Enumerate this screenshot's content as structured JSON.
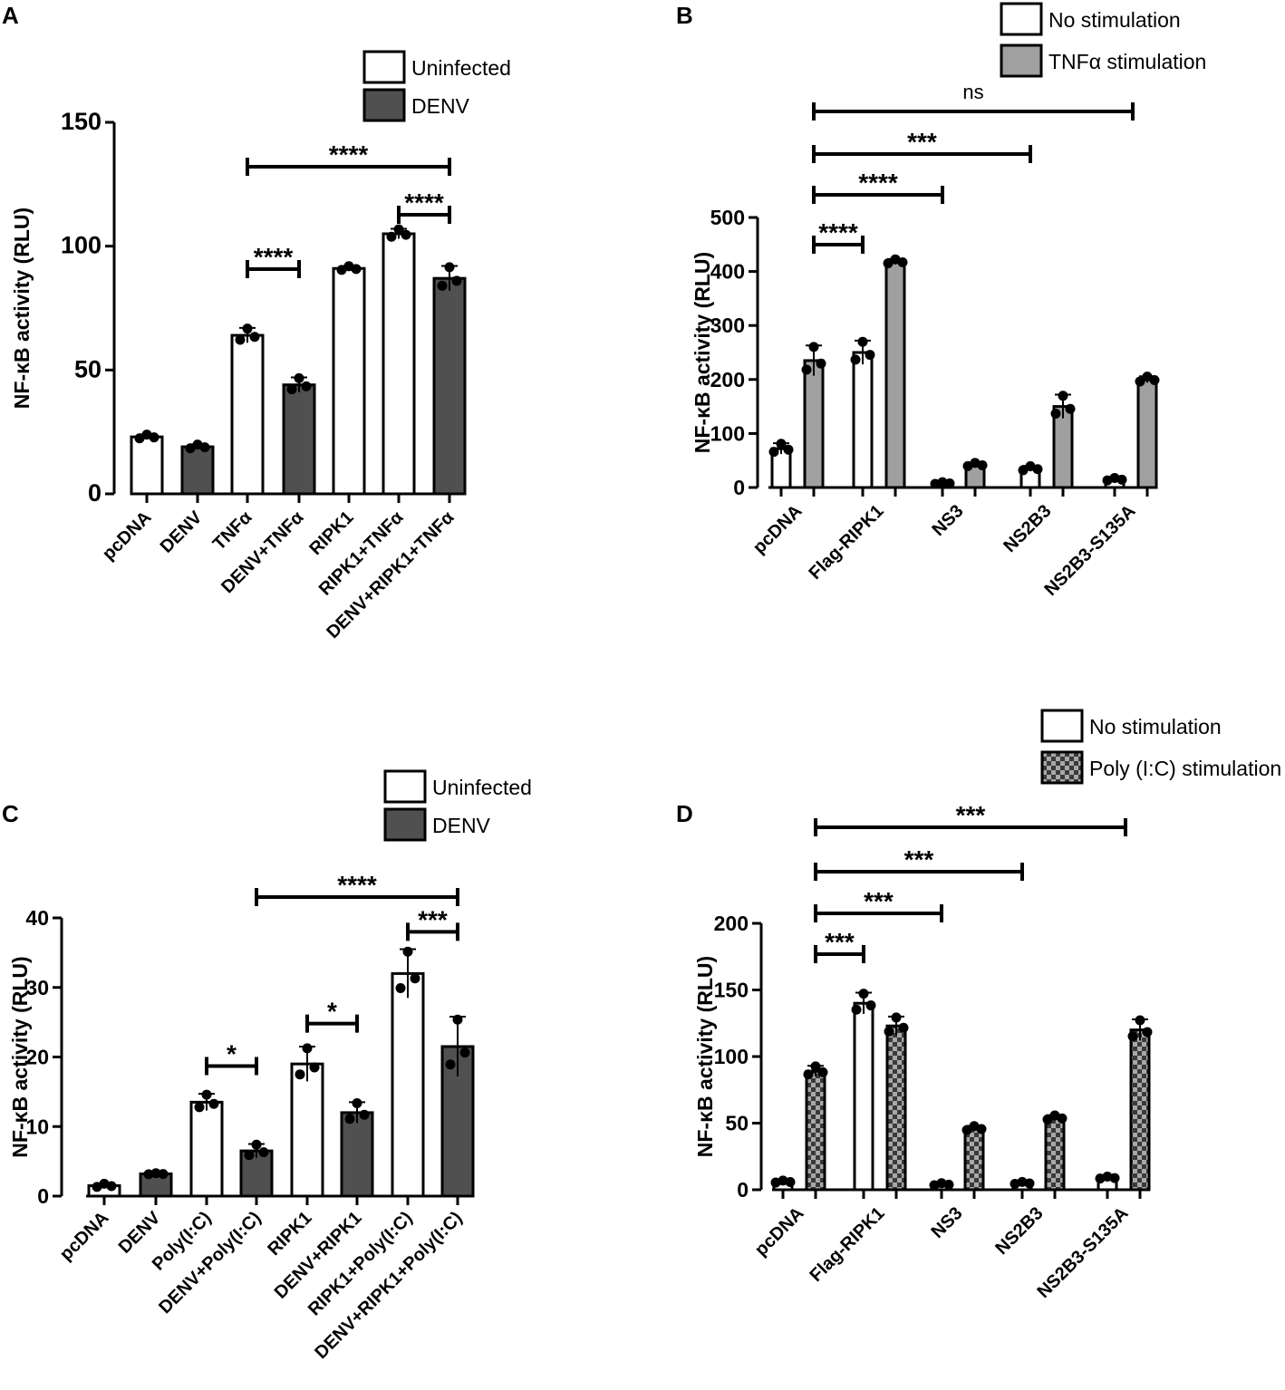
{
  "colors": {
    "dark_bar": "#505050",
    "light_bar": "#a0a0a0",
    "open_bar": "#ffffff",
    "axis": "#000000"
  },
  "chart_data": [
    {
      "panel": "A",
      "type": "bar",
      "ylabel": "NF-κB activity (RLU)",
      "ylim": [
        0,
        150
      ],
      "yticks": [
        0,
        50,
        100,
        150
      ],
      "legend": [
        {
          "label": "Uninfected",
          "style": "open"
        },
        {
          "label": "DENV",
          "style": "dark"
        }
      ],
      "categories": [
        "pcDNA",
        "DENV",
        "TNFα",
        "DENV+TNFα",
        "RIPK1",
        "RIPK1+TNFα",
        "DENV+RIPK1+TNFα"
      ],
      "values": [
        23,
        19,
        64,
        44,
        91,
        105,
        87
      ],
      "errors": [
        1,
        1,
        3,
        3,
        1,
        2,
        5
      ],
      "bar_styles": [
        "open",
        "dark",
        "open",
        "dark",
        "open",
        "open",
        "dark"
      ],
      "significance": [
        {
          "from": 3,
          "to": 7,
          "label": "****",
          "y": 133
        },
        {
          "from": 6,
          "to": 7,
          "label": "****",
          "y": 113
        },
        {
          "from": 3,
          "to": 4,
          "label": "****",
          "y": 91
        }
      ]
    },
    {
      "panel": "B",
      "type": "bar",
      "ylabel": "NF-κB activity (RLU)",
      "ylim": [
        0,
        500
      ],
      "yticks": [
        0,
        100,
        200,
        300,
        400,
        500
      ],
      "legend": [
        {
          "label": "No stimulation",
          "style": "open"
        },
        {
          "label": "TNFα stimulation",
          "style": "gray"
        }
      ],
      "categories": [
        "pcDNA",
        "Flag-RIPK1",
        "NS3",
        "NS2B3",
        "NS2B3-S135A"
      ],
      "series": [
        {
          "name": "No stimulation",
          "style": "open",
          "values": [
            72,
            250,
            8,
            35,
            15
          ],
          "errors": [
            10,
            22,
            2,
            5,
            3
          ]
        },
        {
          "name": "TNFα stimulation",
          "style": "gray",
          "values": [
            235,
            418,
            42,
            150,
            200
          ],
          "errors": [
            28,
            5,
            4,
            22,
            6
          ]
        }
      ],
      "significance": [
        {
          "from": 1,
          "to": 5,
          "label": "ns"
        },
        {
          "from": 1,
          "to": 4,
          "label": "***"
        },
        {
          "from": 1,
          "to": 3,
          "label": "****"
        },
        {
          "from": 1,
          "to": 2,
          "label": "****"
        }
      ]
    },
    {
      "panel": "C",
      "type": "bar",
      "ylabel": "NF-κB activity (RLU)",
      "ylim": [
        0,
        40
      ],
      "yticks": [
        0,
        10,
        20,
        30,
        40
      ],
      "legend": [
        {
          "label": "Uninfected",
          "style": "open"
        },
        {
          "label": "DENV",
          "style": "dark"
        }
      ],
      "categories": [
        "pcDNA",
        "DENV",
        "Poly(I:C)",
        "DENV+Poly(I:C)",
        "RIPK1",
        "DENV+RIPK1",
        "RIPK1+Poly(I:C)",
        "DENV+RIPK1+Poly(I:C)"
      ],
      "values": [
        1.5,
        3.2,
        13.5,
        6.5,
        19,
        12,
        32,
        21.5
      ],
      "errors": [
        0.3,
        0.1,
        1.2,
        1,
        2.5,
        1.5,
        3.5,
        4.3
      ],
      "bar_styles": [
        "open",
        "dark",
        "open",
        "dark",
        "open",
        "dark",
        "open",
        "dark"
      ],
      "significance": [
        {
          "from": 4,
          "to": 8,
          "label": "****",
          "y": 43
        },
        {
          "from": 7,
          "to": 8,
          "label": "***",
          "y": 38
        },
        {
          "from": 5,
          "to": 6,
          "label": "*",
          "y": 24.8
        },
        {
          "from": 3,
          "to": 4,
          "label": "*",
          "y": 18.7
        }
      ]
    },
    {
      "panel": "D",
      "type": "bar",
      "ylabel": "NF-κB activity (RLU)",
      "ylim": [
        0,
        200
      ],
      "yticks": [
        0,
        50,
        100,
        150,
        200
      ],
      "legend": [
        {
          "label": "No stimulation",
          "style": "open"
        },
        {
          "label": "Poly (I:C) stimulation",
          "style": "checker"
        }
      ],
      "categories": [
        "pcDNA",
        "Flag-RIPK1",
        "NS3",
        "NS2B3",
        "NS2B3-S135A"
      ],
      "series": [
        {
          "name": "No stimulation",
          "style": "open",
          "values": [
            6,
            140,
            4,
            5,
            9
          ],
          "errors": [
            1,
            8,
            1,
            1,
            1
          ]
        },
        {
          "name": "Poly (I:C) stimulation",
          "style": "checker",
          "values": [
            89,
            123,
            46,
            54,
            120
          ],
          "errors": [
            4,
            7,
            2,
            2,
            8
          ]
        }
      ],
      "significance": [
        {
          "from": 1,
          "to": 5,
          "label": "***"
        },
        {
          "from": 1,
          "to": 4,
          "label": "***"
        },
        {
          "from": 1,
          "to": 3,
          "label": "***"
        },
        {
          "from": 1,
          "to": 2,
          "label": "***"
        }
      ]
    }
  ]
}
